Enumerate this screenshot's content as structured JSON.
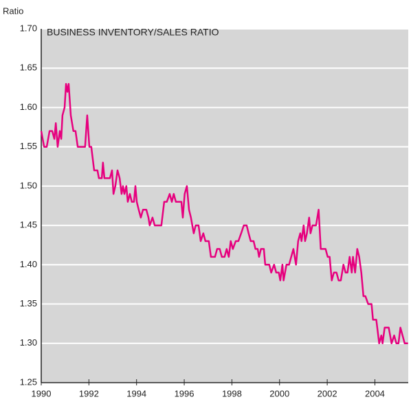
{
  "chart_data": {
    "type": "line",
    "title": "BUSINESS INVENTORY/SALES RATIO",
    "y_label": "Ratio",
    "x": [
      1990.0,
      1990.12,
      1990.23,
      1990.35,
      1990.46,
      1990.55,
      1990.61,
      1990.69,
      1990.78,
      1990.84,
      1990.89,
      1990.98,
      1991.04,
      1991.1,
      1991.15,
      1991.24,
      1991.35,
      1991.44,
      1991.53,
      1991.84,
      1991.93,
      1992.02,
      1992.1,
      1992.22,
      1992.36,
      1992.42,
      1992.54,
      1992.59,
      1992.65,
      1992.88,
      1992.97,
      1993.03,
      1993.11,
      1993.2,
      1993.29,
      1993.37,
      1993.43,
      1993.49,
      1993.57,
      1993.63,
      1993.72,
      1993.8,
      1993.89,
      1993.95,
      1994.01,
      1994.09,
      1994.18,
      1994.27,
      1994.41,
      1994.5,
      1994.55,
      1994.67,
      1994.76,
      1995.04,
      1995.16,
      1995.27,
      1995.39,
      1995.48,
      1995.56,
      1995.65,
      1995.88,
      1995.94,
      1996.02,
      1996.11,
      1996.2,
      1996.28,
      1996.4,
      1996.48,
      1996.6,
      1996.69,
      1996.8,
      1996.89,
      1997.03,
      1997.12,
      1997.29,
      1997.38,
      1997.49,
      1997.58,
      1997.69,
      1997.78,
      1997.87,
      1997.95,
      1998.04,
      1998.16,
      1998.27,
      1998.39,
      1998.5,
      1998.62,
      1998.7,
      1998.79,
      1998.91,
      1998.99,
      1999.08,
      1999.14,
      1999.22,
      1999.34,
      1999.4,
      1999.57,
      1999.65,
      1999.77,
      1999.86,
      1999.97,
      2000.03,
      2000.12,
      2000.17,
      2000.29,
      2000.4,
      2000.49,
      2000.58,
      2000.69,
      2000.78,
      2000.87,
      2000.92,
      2001.01,
      2001.07,
      2001.15,
      2001.24,
      2001.3,
      2001.38,
      2001.53,
      2001.64,
      2001.73,
      2001.93,
      2002.02,
      2002.1,
      2002.19,
      2002.28,
      2002.39,
      2002.48,
      2002.57,
      2002.68,
      2002.77,
      2002.85,
      2002.94,
      2003.03,
      2003.08,
      2003.17,
      2003.26,
      2003.34,
      2003.43,
      2003.52,
      2003.6,
      2003.72,
      2003.86,
      2003.92,
      2004.06,
      2004.18,
      2004.27,
      2004.32,
      2004.41,
      2004.58,
      2004.7,
      2004.81,
      2004.9,
      2004.99,
      2005.07,
      2005.16,
      2005.25,
      2005.39
    ],
    "series": [
      {
        "color": "#e6007e",
        "values": [
          1.57,
          1.55,
          1.55,
          1.57,
          1.57,
          1.56,
          1.58,
          1.55,
          1.57,
          1.56,
          1.59,
          1.6,
          1.63,
          1.62,
          1.63,
          1.59,
          1.57,
          1.57,
          1.55,
          1.55,
          1.59,
          1.55,
          1.55,
          1.52,
          1.52,
          1.51,
          1.51,
          1.53,
          1.51,
          1.51,
          1.52,
          1.49,
          1.5,
          1.52,
          1.51,
          1.49,
          1.5,
          1.49,
          1.5,
          1.48,
          1.49,
          1.48,
          1.48,
          1.5,
          1.48,
          1.47,
          1.46,
          1.47,
          1.47,
          1.46,
          1.45,
          1.46,
          1.45,
          1.45,
          1.48,
          1.48,
          1.49,
          1.48,
          1.49,
          1.48,
          1.48,
          1.46,
          1.49,
          1.5,
          1.47,
          1.46,
          1.44,
          1.45,
          1.45,
          1.43,
          1.44,
          1.43,
          1.43,
          1.41,
          1.41,
          1.42,
          1.42,
          1.41,
          1.41,
          1.42,
          1.41,
          1.43,
          1.42,
          1.43,
          1.43,
          1.44,
          1.45,
          1.45,
          1.44,
          1.43,
          1.43,
          1.42,
          1.42,
          1.41,
          1.42,
          1.42,
          1.4,
          1.4,
          1.39,
          1.4,
          1.39,
          1.39,
          1.38,
          1.4,
          1.38,
          1.4,
          1.4,
          1.41,
          1.42,
          1.4,
          1.43,
          1.44,
          1.43,
          1.45,
          1.43,
          1.44,
          1.46,
          1.44,
          1.45,
          1.45,
          1.47,
          1.42,
          1.42,
          1.41,
          1.41,
          1.38,
          1.39,
          1.39,
          1.38,
          1.38,
          1.4,
          1.39,
          1.39,
          1.41,
          1.39,
          1.41,
          1.39,
          1.42,
          1.41,
          1.39,
          1.36,
          1.36,
          1.35,
          1.35,
          1.33,
          1.33,
          1.3,
          1.31,
          1.3,
          1.32,
          1.32,
          1.3,
          1.31,
          1.3,
          1.3,
          1.32,
          1.31,
          1.3,
          1.3
        ]
      }
    ],
    "xlim": [
      1990,
      2005.4
    ],
    "xticks": [
      1990,
      1992,
      1994,
      1996,
      1998,
      2000,
      2002,
      2004
    ],
    "ylim": [
      1.25,
      1.7
    ],
    "yticks": [
      1.25,
      {
        "value": 1.3,
        "label": "1.30"
      },
      1.35,
      {
        "value": 1.4,
        "label": "1.40"
      },
      1.45,
      {
        "value": 1.5,
        "label": "1.50"
      },
      1.55,
      {
        "value": 1.6,
        "label": "1.60"
      },
      1.65,
      {
        "value": 1.7,
        "label": "1.70"
      }
    ],
    "grid": true
  }
}
